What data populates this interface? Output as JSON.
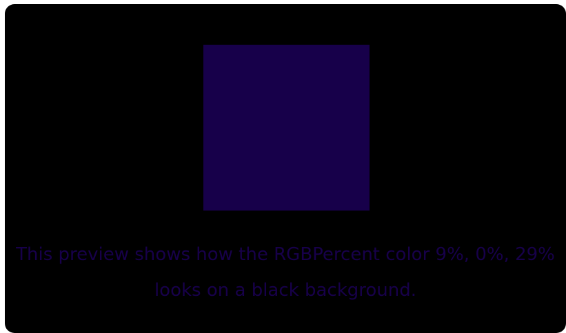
{
  "preview": {
    "swatch_color": "#17004a",
    "background_color": "#000000",
    "text_color": "#17004a",
    "description": "This preview shows how the RGBPercent color 9%, 0%, 29% looks on a black background."
  }
}
